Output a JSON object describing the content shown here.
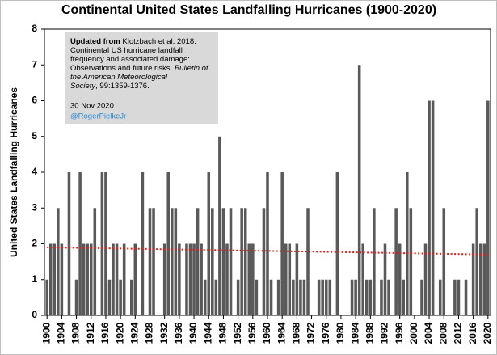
{
  "chart_data": {
    "type": "bar",
    "title": "Continental United States Landfalling Hurricanes (1900-2020)",
    "y_label": "United States Landfalling Hurricanes",
    "x": [
      1900,
      1901,
      1902,
      1903,
      1904,
      1905,
      1906,
      1907,
      1908,
      1909,
      1910,
      1911,
      1912,
      1913,
      1914,
      1915,
      1916,
      1917,
      1918,
      1919,
      1920,
      1921,
      1922,
      1923,
      1924,
      1925,
      1926,
      1927,
      1928,
      1929,
      1930,
      1931,
      1932,
      1933,
      1934,
      1935,
      1936,
      1937,
      1938,
      1939,
      1940,
      1941,
      1942,
      1943,
      1944,
      1945,
      1946,
      1947,
      1948,
      1949,
      1950,
      1951,
      1952,
      1953,
      1954,
      1955,
      1956,
      1957,
      1958,
      1959,
      1960,
      1961,
      1962,
      1963,
      1964,
      1965,
      1966,
      1967,
      1968,
      1969,
      1970,
      1971,
      1972,
      1973,
      1974,
      1975,
      1976,
      1977,
      1978,
      1979,
      1980,
      1981,
      1982,
      1983,
      1984,
      1985,
      1986,
      1987,
      1988,
      1989,
      1990,
      1991,
      1992,
      1993,
      1994,
      1995,
      1996,
      1997,
      1998,
      1999,
      2000,
      2001,
      2002,
      2003,
      2004,
      2005,
      2006,
      2007,
      2008,
      2009,
      2010,
      2011,
      2012,
      2013,
      2014,
      2015,
      2016,
      2017,
      2018,
      2019,
      2020
    ],
    "values": [
      1,
      2,
      2,
      3,
      2,
      0,
      4,
      0,
      1,
      4,
      2,
      2,
      2,
      3,
      0,
      4,
      4,
      1,
      2,
      2,
      1,
      2,
      0,
      1,
      2,
      0,
      4,
      0,
      3,
      3,
      0,
      0,
      2,
      4,
      3,
      3,
      2,
      0,
      2,
      2,
      2,
      3,
      2,
      1,
      4,
      3,
      1,
      5,
      3,
      2,
      3,
      0,
      1,
      3,
      3,
      2,
      2,
      1,
      0,
      3,
      4,
      1,
      0,
      1,
      4,
      2,
      2,
      1,
      2,
      1,
      1,
      3,
      0,
      0,
      1,
      1,
      1,
      1,
      0,
      4,
      0,
      0,
      0,
      1,
      1,
      7,
      2,
      1,
      1,
      3,
      0,
      1,
      2,
      1,
      0,
      3,
      2,
      1,
      4,
      3,
      0,
      0,
      1,
      2,
      6,
      6,
      0,
      1,
      3,
      0,
      0,
      1,
      1,
      0,
      1,
      0,
      2,
      3,
      2,
      2,
      6
    ],
    "color": "#595959",
    "xlim": [
      1899.3,
      2020.7
    ],
    "xticks": [
      1900,
      1904,
      1908,
      1912,
      1916,
      1920,
      1924,
      1928,
      1932,
      1936,
      1940,
      1944,
      1948,
      1952,
      1956,
      1960,
      1964,
      1968,
      1972,
      1976,
      1980,
      1984,
      1988,
      1992,
      1996,
      2000,
      2004,
      2008,
      2012,
      2016,
      2020
    ],
    "ylim": [
      0,
      8
    ],
    "yticks": [
      0,
      1,
      2,
      3,
      4,
      5,
      6,
      7,
      8
    ],
    "trend": {
      "x": [
        1900,
        2020
      ],
      "values": [
        1.9,
        1.7
      ],
      "color": "#e0201b"
    },
    "annotation": {
      "lines": [
        [
          {
            "text": "Updated from",
            "style": "bold"
          },
          {
            "text": " Klotzbach et al. 2018.",
            "style": "normal"
          }
        ],
        [
          {
            "text": "Continental US hurricane landfall",
            "style": "normal"
          }
        ],
        [
          {
            "text": "frequency and associated damage:",
            "style": "normal"
          }
        ],
        [
          {
            "text": "Observations and future risks. ",
            "style": "normal"
          },
          {
            "text": "Bulletin of",
            "style": "italic"
          }
        ],
        [
          {
            "text": "the American Meteorological",
            "style": "italic"
          }
        ],
        [
          {
            "text": "Society",
            "style": "italic"
          },
          {
            "text": ", 99:1359-1376.",
            "style": "normal"
          }
        ]
      ],
      "date": "30 Nov 2020",
      "handle": "@RogerPielkeJr"
    }
  }
}
